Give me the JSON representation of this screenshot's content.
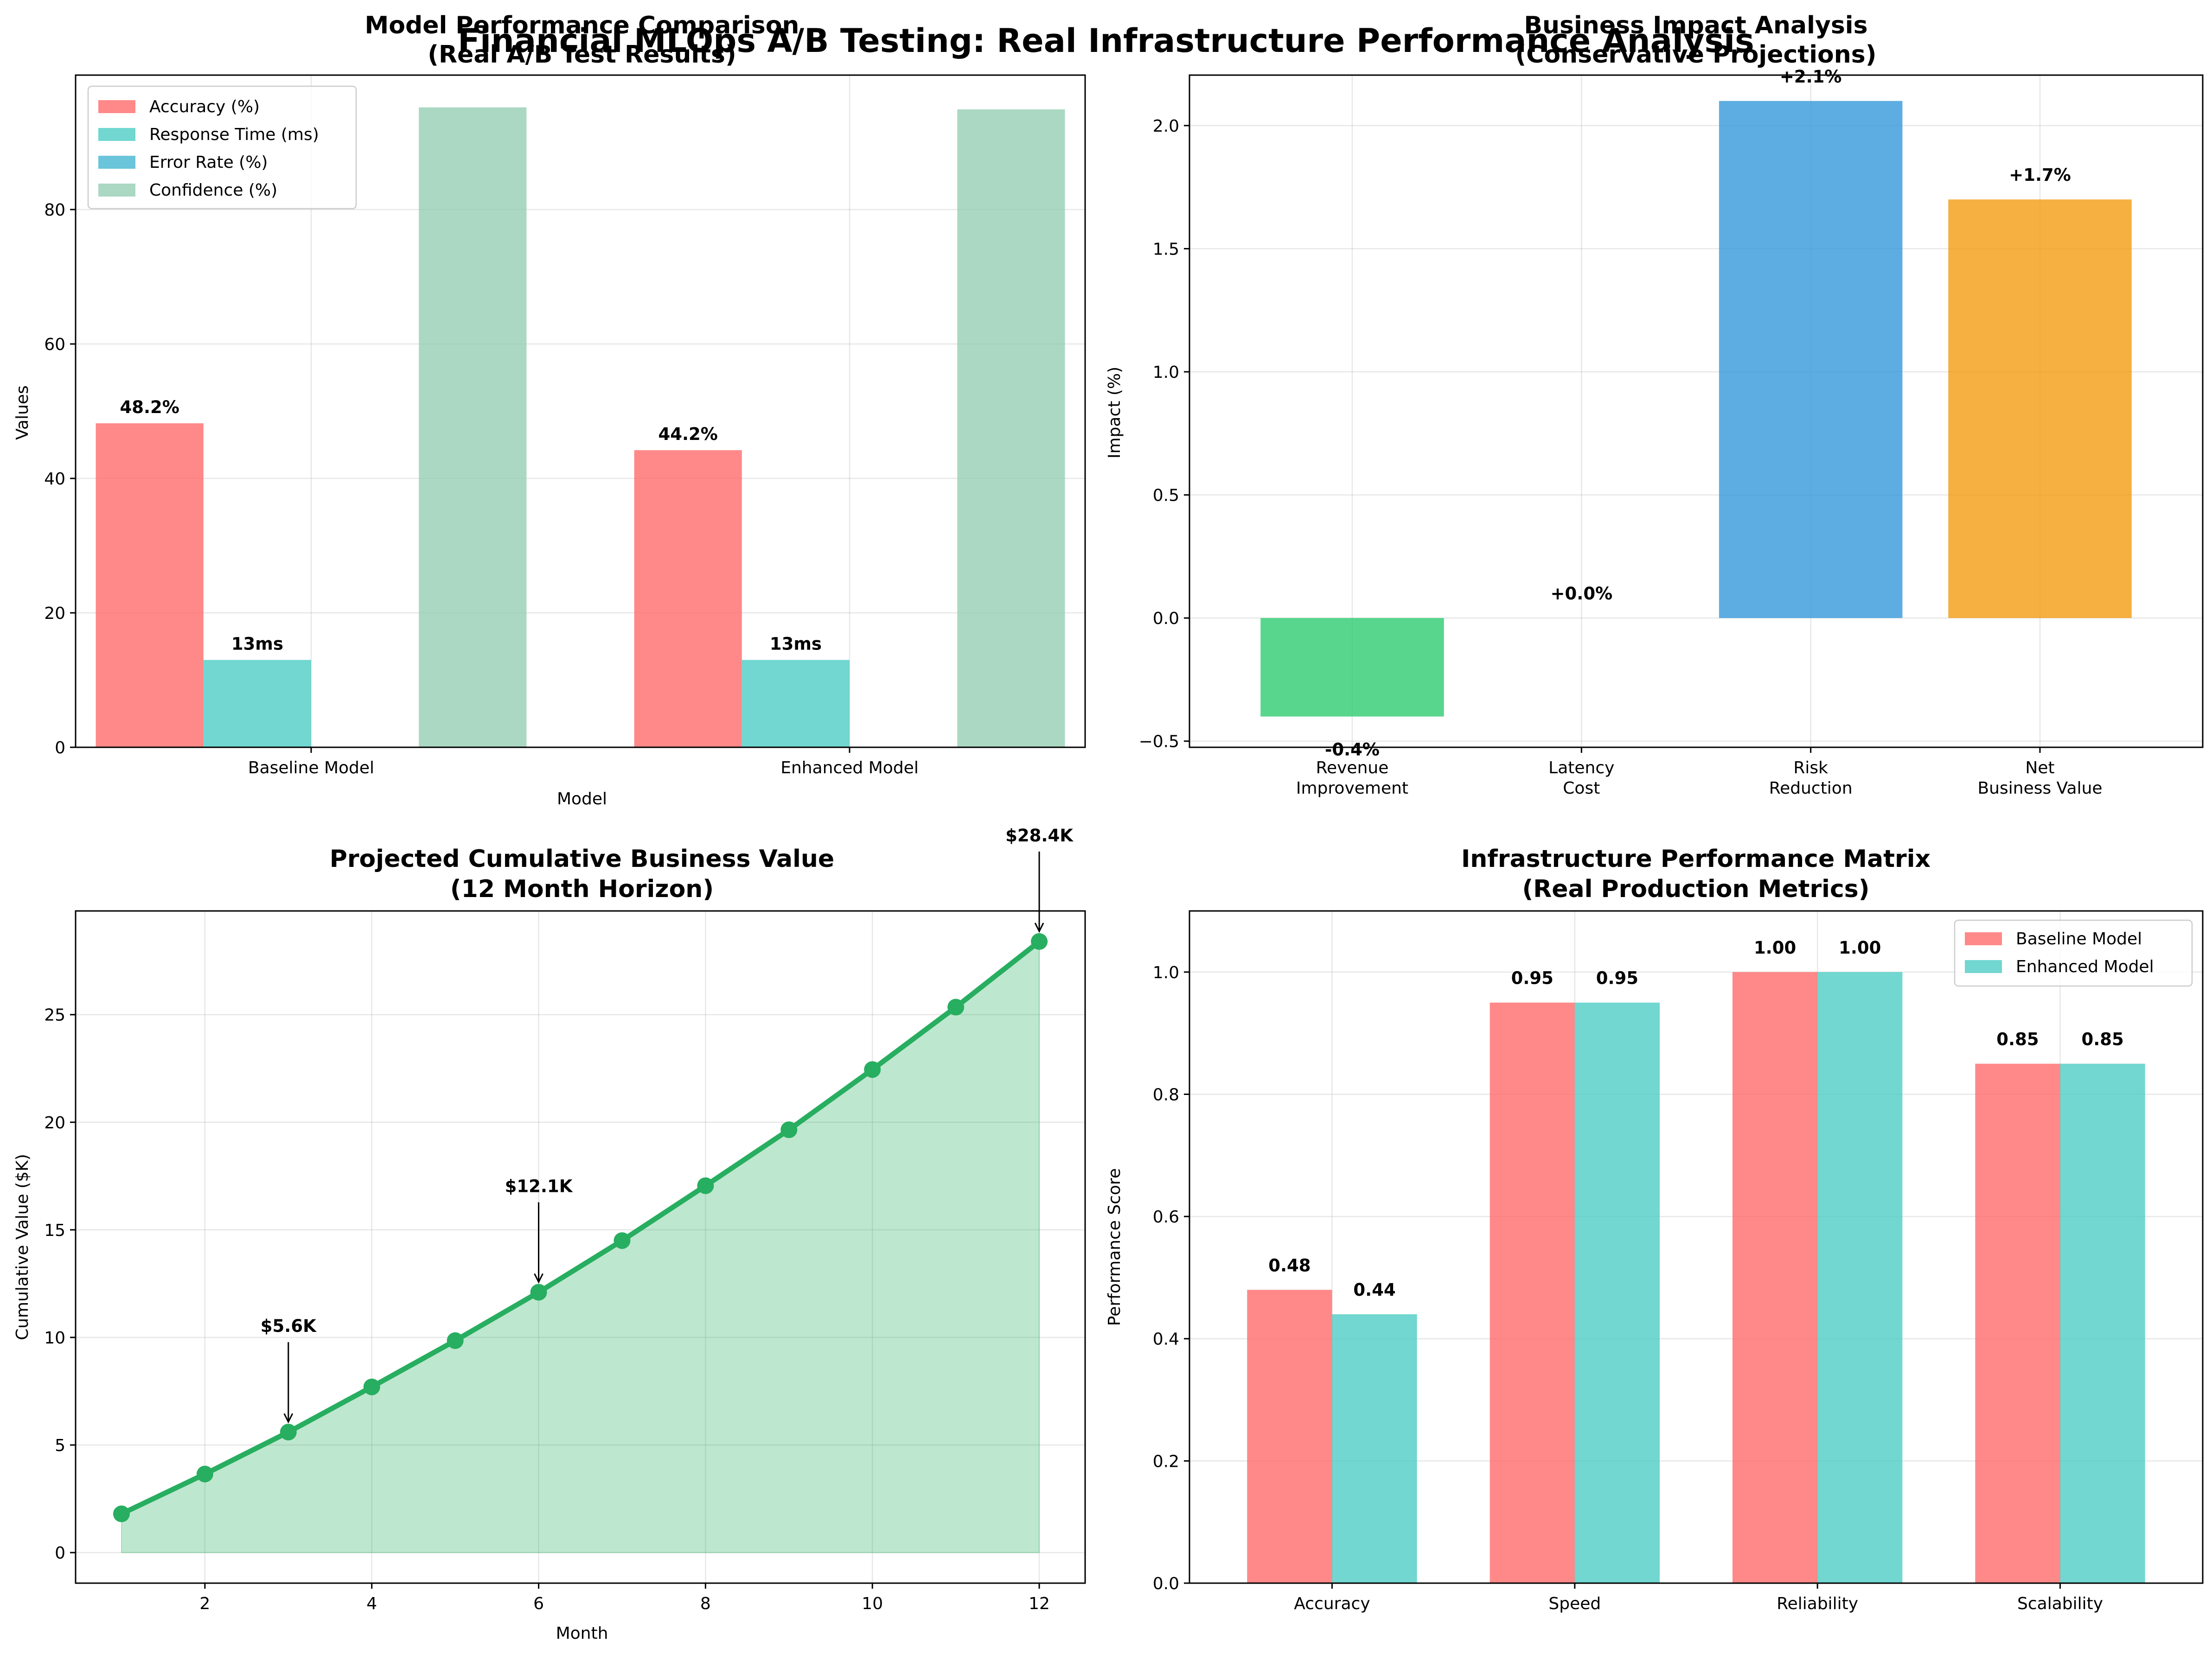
{
  "suptitle": "Financial MLOps A/B Testing: Real Infrastructure Performance Analysis",
  "chart_data": [
    {
      "type": "bar",
      "title": "Model Performance Comparison\n(Real A/B Test Results)",
      "xlabel": "Model",
      "ylabel": "Values",
      "categories": [
        "Baseline Model",
        "Enhanced Model"
      ],
      "series": [
        {
          "name": "Accuracy (%)",
          "values": [
            48.2,
            44.2
          ],
          "color": "#FF6B6B",
          "labels": [
            "48.2%",
            "44.2%"
          ]
        },
        {
          "name": "Response Time (ms)",
          "values": [
            13,
            13
          ],
          "color": "#4ECDC4",
          "labels": [
            "13ms",
            "13ms"
          ]
        },
        {
          "name": "Error Rate (%)",
          "values": [
            0,
            0
          ],
          "color": "#45B7D1",
          "labels": [
            "",
            ""
          ]
        },
        {
          "name": "Confidence (%)",
          "values": [
            95.2,
            94.9
          ],
          "color": "#96CEB4",
          "labels": [
            "",
            ""
          ]
        }
      ],
      "yticks": [
        "0",
        "20",
        "40",
        "60",
        "80"
      ],
      "ylim": [
        0,
        100
      ],
      "legend": "upper-left",
      "grid": true
    },
    {
      "type": "bar",
      "title": "Business Impact Analysis\n(Conservative Projections)",
      "xlabel": "",
      "ylabel": "Impact (%)",
      "categories": [
        "Revenue\nImprovement",
        "Latency\nCost",
        "Risk\nReduction",
        "Net\nBusiness Value"
      ],
      "values": [
        -0.4,
        0.0,
        2.1,
        1.7
      ],
      "labels": [
        "-0.4%",
        "+0.0%",
        "+2.1%",
        "+1.7%"
      ],
      "colors": [
        "#2ECC71",
        "#E74C3C",
        "#3498DB",
        "#F39C12"
      ],
      "yticks": [
        "−0.5",
        "0.0",
        "0.5",
        "1.0",
        "1.5",
        "2.0"
      ],
      "ylim": [
        -0.525,
        2.205
      ],
      "grid": true
    },
    {
      "type": "area",
      "title": "Projected Cumulative Business Value\n(12 Month Horizon)",
      "xlabel": "Month",
      "ylabel": "Cumulative Value ($K)",
      "x": [
        1,
        2,
        3,
        4,
        5,
        6,
        7,
        8,
        9,
        10,
        11,
        12
      ],
      "y": [
        1.8,
        3.65,
        5.6,
        7.7,
        9.85,
        12.1,
        14.5,
        17.05,
        19.65,
        22.45,
        25.35,
        28.4
      ],
      "annotations": [
        {
          "x": 3,
          "label": "$5.6K"
        },
        {
          "x": 6,
          "label": "$12.1K"
        },
        {
          "x": 12,
          "label": "$28.4K"
        }
      ],
      "color": "#27AE60",
      "xticks": [
        "2",
        "4",
        "6",
        "8",
        "10",
        "12"
      ],
      "yticks": [
        "0",
        "5",
        "10",
        "15",
        "20",
        "25"
      ],
      "xlim": [
        0.45,
        12.55
      ],
      "ylim": [
        -1.42,
        29.82
      ],
      "grid": true
    },
    {
      "type": "bar",
      "title": "Infrastructure Performance Matrix\n(Real Production Metrics)",
      "xlabel": "",
      "ylabel": "Performance Score",
      "categories": [
        "Accuracy",
        "Speed",
        "Reliability",
        "Scalability"
      ],
      "series": [
        {
          "name": "Baseline Model",
          "values": [
            0.48,
            0.95,
            1.0,
            0.85
          ],
          "color": "#FF6B6B",
          "labels": [
            "0.48",
            "0.95",
            "1.00",
            "0.85"
          ]
        },
        {
          "name": "Enhanced Model",
          "values": [
            0.44,
            0.95,
            1.0,
            0.85
          ],
          "color": "#4ECDC4",
          "labels": [
            "0.44",
            "0.95",
            "1.00",
            "0.85"
          ]
        }
      ],
      "yticks": [
        "0.0",
        "0.2",
        "0.4",
        "0.6",
        "0.8",
        "1.0"
      ],
      "ylim": [
        0,
        1.1
      ],
      "legend": "upper-right",
      "grid": true
    }
  ]
}
